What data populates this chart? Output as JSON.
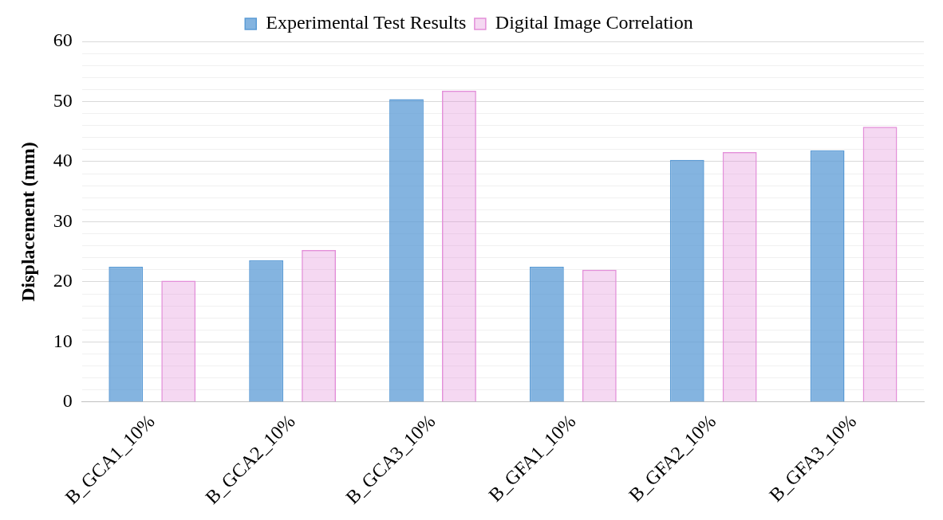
{
  "chart_data": {
    "type": "bar",
    "ylabel": "Displacement (mm)",
    "categories": [
      "B_GCA1_10%",
      "B_GCA2_10%",
      "B_GCA3_10%",
      "B_GFA1_10%",
      "B_GFA2_10%",
      "B_GFA3_10%"
    ],
    "series": [
      {
        "name": "Experimental Test Results",
        "color": "#5b9bd5",
        "values": [
          22.5,
          23.6,
          50.4,
          22.5,
          40.3,
          41.9
        ]
      },
      {
        "name": "Digital Image Correlation",
        "color": "#e38fd9",
        "values": [
          20.2,
          25.3,
          51.8,
          22,
          41.6,
          45.8
        ]
      }
    ],
    "ylim": [
      0,
      60
    ],
    "yticks": [
      0,
      {
        "value": 2,
        "label": null
      },
      {
        "value": 4,
        "label": null
      },
      {
        "value": 6,
        "label": null
      },
      {
        "value": 8,
        "label": null
      },
      10,
      {
        "value": 12,
        "label": null
      },
      {
        "value": 14,
        "label": null
      },
      {
        "value": 16,
        "label": null
      },
      {
        "value": 18,
        "label": null
      },
      20,
      {
        "value": 22,
        "label": null
      },
      {
        "value": 24,
        "label": null
      },
      {
        "value": 26,
        "label": null
      },
      {
        "value": 28,
        "label": null
      },
      30,
      {
        "value": 32,
        "label": null
      },
      {
        "value": 34,
        "label": null
      },
      {
        "value": 36,
        "label": null
      },
      {
        "value": 38,
        "label": null
      },
      40,
      {
        "value": 42,
        "label": null
      },
      {
        "value": 44,
        "label": null
      },
      {
        "value": 46,
        "label": null
      },
      {
        "value": 48,
        "label": null
      },
      50,
      {
        "value": 52,
        "label": null
      },
      {
        "value": 54,
        "label": null
      },
      {
        "value": 56,
        "label": null
      },
      {
        "value": 58,
        "label": null
      },
      60
    ],
    "grid": "y",
    "legend": "top"
  }
}
